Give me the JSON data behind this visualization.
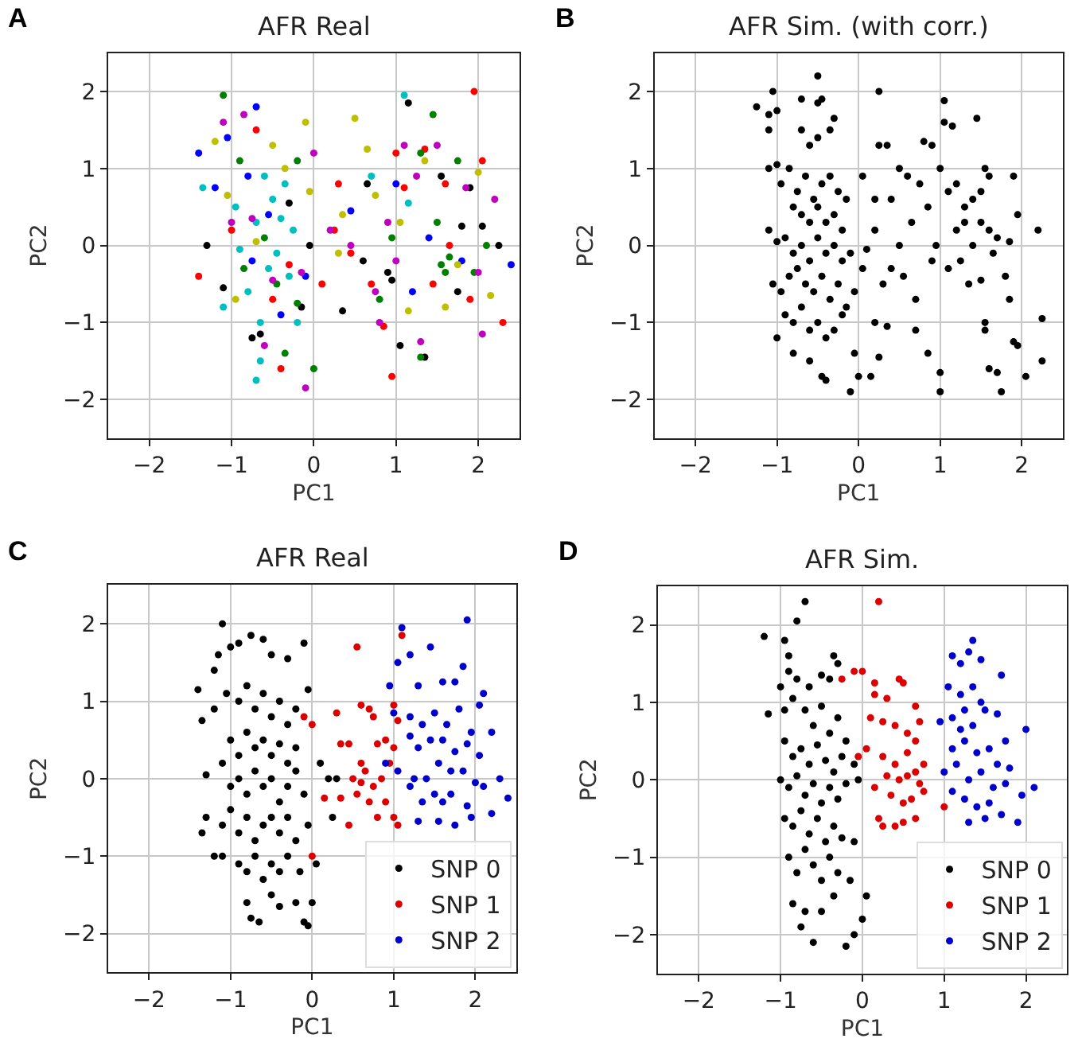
{
  "chart_data": [
    {
      "type": "scatter",
      "title": "AFR Real",
      "xlabel": "PC1",
      "ylabel": "PC2",
      "annotations": [
        "A"
      ],
      "xlim": [
        -2.5,
        2.5
      ],
      "ylim": [
        -2.5,
        2.5
      ],
      "xticks": [
        -2,
        -1,
        0,
        1,
        2
      ],
      "yticks": [
        -2,
        -1,
        0,
        1,
        2
      ],
      "grid": true,
      "marker": "circle",
      "legend": false,
      "series": [
        {
          "color": "#000000",
          "x": [
            -1.3,
            -1.1,
            -0.75,
            -0.65,
            -0.3,
            -0.15,
            -0.05,
            0.35,
            0.6,
            0.65,
            0.9,
            0.95,
            1.05,
            1.15,
            1.35,
            1.55,
            1.8,
            1.9,
            2.05,
            2.25,
            1.75
          ],
          "values": [
            0.0,
            -0.55,
            -1.2,
            -1.15,
            0.55,
            -0.8,
            0.0,
            -0.85,
            -0.2,
            0.8,
            -0.35,
            -0.45,
            -1.3,
            1.85,
            -1.45,
            0.9,
            0.25,
            0.75,
            0.25,
            0.0,
            -0.6
          ]
        },
        {
          "color": "#ff0000",
          "x": [
            -1.4,
            -1.0,
            -0.7,
            -0.5,
            -0.4,
            -0.3,
            0.1,
            0.25,
            0.3,
            0.45,
            0.7,
            0.85,
            0.95,
            1.0,
            1.1,
            1.35,
            1.45,
            1.6,
            1.65,
            1.95,
            2.05,
            2.3,
            1.9
          ],
          "values": [
            -0.4,
            0.2,
            1.5,
            -0.7,
            -1.6,
            -0.25,
            -0.5,
            0.2,
            0.8,
            -0.1,
            -0.5,
            -1.05,
            -1.7,
            1.2,
            0.75,
            1.25,
            -0.5,
            0.8,
            0.0,
            2.0,
            1.1,
            -1.0,
            -0.7
          ]
        },
        {
          "color": "#008000",
          "x": [
            -1.1,
            -0.9,
            -0.85,
            -0.6,
            -0.45,
            -0.35,
            -0.2,
            -0.2,
            0.0,
            0.8,
            0.95,
            1.3,
            1.45,
            1.5,
            1.55,
            1.6,
            1.75,
            1.95,
            2.1,
            1.3,
            1.65
          ],
          "values": [
            1.95,
            1.1,
            -0.3,
            0.1,
            -0.5,
            -1.4,
            1.1,
            -0.75,
            -1.6,
            -0.7,
            0.1,
            1.2,
            1.7,
            0.3,
            -0.25,
            -0.35,
            1.1,
            -0.35,
            0.0,
            -1.45,
            -0.15
          ]
        },
        {
          "color": "#0000ff",
          "x": [
            -1.4,
            -1.2,
            -1.05,
            -0.8,
            -0.7,
            -0.75,
            -0.55,
            -0.4,
            -0.1,
            0.45,
            1.0,
            1.4,
            1.8,
            2.4,
            1.2
          ],
          "values": [
            1.2,
            0.75,
            1.4,
            0.9,
            1.8,
            -0.2,
            0.4,
            -0.9,
            -0.4,
            0.45,
            0.8,
            0.1,
            -0.2,
            -0.25,
            -0.6
          ]
        },
        {
          "color": "#00bfbf",
          "x": [
            -1.35,
            -1.1,
            -0.95,
            -0.9,
            -0.8,
            -0.7,
            -0.65,
            -0.6,
            -0.55,
            -0.5,
            -0.45,
            -0.35,
            -0.3,
            -0.25,
            -0.2,
            -0.65,
            -0.7,
            0.7,
            1.1,
            1.15,
            -0.4
          ],
          "values": [
            0.75,
            -0.8,
            0.5,
            -0.05,
            -0.6,
            0.3,
            -1.0,
            0.9,
            -0.3,
            0.6,
            -0.1,
            0.8,
            -0.4,
            0.2,
            -1.0,
            -1.5,
            -1.75,
            0.9,
            1.95,
            0.55,
            0.35
          ]
        },
        {
          "color": "#bf00bf",
          "x": [
            -1.1,
            -0.85,
            -1.0,
            -0.75,
            -0.6,
            -0.5,
            -0.15,
            -0.1,
            0.0,
            0.2,
            0.45,
            0.75,
            0.8,
            1.0,
            1.1,
            1.25,
            1.3,
            1.5,
            1.85,
            2.0,
            2.2,
            2.05,
            0.9
          ],
          "values": [
            1.6,
            1.7,
            0.3,
            0.35,
            -1.3,
            -0.45,
            -0.35,
            -1.85,
            1.2,
            0.2,
            0.0,
            -0.6,
            -1.0,
            -0.2,
            1.3,
            0.9,
            -1.25,
            1.3,
            0.75,
            -0.35,
            0.6,
            -1.15,
            0.3
          ]
        },
        {
          "color": "#bfbf00",
          "x": [
            -1.2,
            -1.05,
            -0.95,
            -0.7,
            -0.5,
            -0.35,
            -0.1,
            -0.05,
            0.35,
            0.5,
            0.65,
            0.75,
            1.05,
            1.15,
            1.35,
            1.6,
            1.75,
            2.0,
            2.15,
            0.3
          ],
          "values": [
            1.35,
            0.65,
            -0.7,
            0.05,
            1.3,
            1.0,
            1.6,
            0.7,
            0.4,
            1.65,
            1.25,
            0.65,
            0.3,
            -0.85,
            1.1,
            -0.8,
            -0.25,
            0.95,
            -0.65,
            -0.1
          ]
        }
      ]
    },
    {
      "type": "scatter",
      "title": "AFR Sim. (with corr.)",
      "xlabel": "PC1",
      "ylabel": "PC2",
      "annotations": [
        "B"
      ],
      "xlim": [
        -2.5,
        2.5
      ],
      "ylim": [
        -2.5,
        2.5
      ],
      "xticks": [
        -2,
        -1,
        0,
        1,
        2
      ],
      "yticks": [
        -2,
        -1,
        0,
        1,
        2
      ],
      "grid": true,
      "marker": "circle",
      "legend": false,
      "series": [
        {
          "color": "#000000",
          "x": [
            -1.25,
            -1.05,
            -1.1,
            -1.1,
            -1.0,
            -0.7,
            -0.5,
            -0.5,
            -0.45,
            -0.7,
            -0.6,
            -0.5,
            -0.3,
            -0.35,
            -1.1,
            -1.0,
            -0.95,
            -0.85,
            -0.75,
            -0.65,
            -0.55,
            -0.45,
            -0.35,
            -0.25,
            -0.15,
            -0.8,
            -0.7,
            -0.6,
            -0.5,
            -0.4,
            -0.3,
            -0.2,
            -1.1,
            -1.0,
            -0.9,
            -0.8,
            -0.7,
            -0.6,
            -0.5,
            -0.4,
            -0.3,
            -0.2,
            -0.1,
            -1.05,
            -0.95,
            -0.85,
            -0.75,
            -0.65,
            -0.55,
            -0.45,
            -0.35,
            -0.25,
            -0.15,
            -0.05,
            -0.9,
            -0.8,
            -0.7,
            -0.6,
            -0.5,
            -0.4,
            -0.3,
            -0.2,
            -1.0,
            -0.8,
            -0.6,
            -0.45,
            -0.4,
            -0.1,
            -0.05,
            0.0,
            0.15,
            0.25,
            0.2,
            0.35,
            0.05,
            0.1,
            0.2,
            0.3,
            0.4,
            0.5,
            0.55,
            0.65,
            0.7,
            0.75,
            0.85,
            0.9,
            0.95,
            0.05,
            0.25,
            0.25,
            0.35,
            0.2,
            0.4,
            0.5,
            0.6,
            0.8,
            0.9,
            0.85,
            0.7,
            1.0,
            1.0,
            1.05,
            1.05,
            1.15,
            1.45,
            1.0,
            1.1,
            1.2,
            1.3,
            1.4,
            1.5,
            1.6,
            1.55,
            1.9,
            1.2,
            1.3,
            1.4,
            1.5,
            1.6,
            1.7,
            1.85,
            1.95,
            2.2,
            1.1,
            1.25,
            1.35,
            1.5,
            1.65,
            1.8,
            1.85,
            1.55,
            1.55,
            1.6,
            1.7,
            1.75,
            1.9,
            1.95,
            2.05,
            2.25,
            2.25
          ],
          "values": [
            1.8,
            2.0,
            1.7,
            1.5,
            1.75,
            1.9,
            2.2,
            1.85,
            1.9,
            1.5,
            1.3,
            1.4,
            1.65,
            1.5,
            1.0,
            1.05,
            0.8,
            1.0,
            0.7,
            0.9,
            0.6,
            0.8,
            0.9,
            0.7,
            0.6,
            0.5,
            0.4,
            0.3,
            0.5,
            0.3,
            0.4,
            0.2,
            0.2,
            0.05,
            0.1,
            -0.1,
            0.0,
            -0.2,
            0.1,
            -0.1,
            0.0,
            -0.2,
            -0.1,
            -0.5,
            -0.6,
            -0.4,
            -0.3,
            -0.5,
            -0.6,
            -0.4,
            -0.7,
            -0.5,
            -0.8,
            -0.6,
            -0.9,
            -1.0,
            -0.8,
            -1.1,
            -1.0,
            -1.2,
            -1.1,
            -0.9,
            -1.2,
            -1.4,
            -1.5,
            -1.7,
            -1.75,
            -1.9,
            -1.4,
            -1.7,
            -1.7,
            -1.45,
            -1.0,
            -1.05,
            -0.3,
            -0.05,
            0.2,
            -0.5,
            -0.3,
            0.0,
            -0.4,
            0.3,
            -0.7,
            0.8,
            0.5,
            -0.2,
            0.0,
            0.9,
            1.3,
            2.0,
            1.3,
            0.6,
            0.6,
            1.0,
            0.9,
            1.35,
            1.3,
            -1.4,
            -1.1,
            -1.65,
            -1.9,
            1.88,
            1.6,
            1.55,
            1.65,
            1.0,
            0.7,
            0.8,
            0.5,
            0.6,
            0.7,
            0.9,
            1.0,
            0.9,
            0.2,
            0.3,
            0.0,
            0.3,
            0.2,
            0.1,
            0.05,
            0.4,
            0.2,
            -0.3,
            -0.2,
            -0.5,
            -0.45,
            -0.1,
            -0.4,
            -0.7,
            -1.0,
            -1.1,
            -1.6,
            -1.65,
            -1.9,
            -1.25,
            -1.3,
            -1.7,
            -0.95,
            -1.5
          ]
        }
      ]
    },
    {
      "type": "scatter",
      "title": "AFR Real",
      "xlabel": "PC1",
      "ylabel": "PC2",
      "annotations": [
        "C"
      ],
      "xlim": [
        -2.5,
        2.5
      ],
      "ylim": [
        -2.5,
        2.5
      ],
      "xticks": [
        -2,
        -1,
        0,
        1,
        2
      ],
      "yticks": [
        -2,
        -1,
        0,
        1,
        2
      ],
      "grid": true,
      "marker": "circle",
      "legend": "bottom right",
      "series": [
        {
          "name": "SNP 0",
          "color": "#000000",
          "x": [
            -1.1,
            -1.4,
            -1.2,
            -1.15,
            -1.0,
            -0.9,
            -0.75,
            -0.6,
            -0.5,
            -0.3,
            -0.1,
            -1.35,
            -1.2,
            -1.05,
            -0.9,
            -0.8,
            -0.7,
            -0.6,
            -0.5,
            -0.4,
            -0.3,
            -0.2,
            -0.05,
            -1.0,
            -0.9,
            -0.8,
            -0.7,
            -0.6,
            -0.5,
            -0.4,
            -0.3,
            -0.2,
            -1.3,
            -1.1,
            -1.0,
            -0.9,
            -0.8,
            -0.7,
            -0.6,
            -0.5,
            -0.4,
            -0.3,
            -0.2,
            -0.1,
            0.1,
            0.2,
            0.3,
            0.25,
            -1.3,
            -1.1,
            -1.0,
            -0.9,
            -0.8,
            -0.7,
            -0.6,
            -0.5,
            -0.4,
            -0.3,
            -0.2,
            -0.05,
            -1.35,
            -1.2,
            -1.1,
            -0.9,
            -0.8,
            -0.7,
            -0.6,
            -0.5,
            -0.4,
            -0.3,
            -0.15,
            0.05,
            -0.8,
            -0.75,
            -0.65,
            -0.5,
            -0.4,
            -0.2,
            -0.1,
            -0.05,
            0.0
          ],
          "values": [
            2.0,
            1.15,
            1.4,
            1.6,
            1.7,
            1.75,
            1.85,
            1.8,
            1.6,
            1.55,
            1.75,
            0.75,
            0.9,
            1.1,
            1.0,
            1.2,
            0.9,
            1.1,
            0.8,
            1.0,
            0.7,
            0.9,
            1.15,
            0.5,
            0.3,
            0.6,
            0.4,
            0.5,
            0.3,
            0.45,
            0.2,
            0.4,
            0.05,
            0.2,
            -0.1,
            0.0,
            -0.2,
            0.1,
            -0.1,
            0.0,
            -0.3,
            -0.1,
            0.1,
            -0.2,
            0.2,
            0.0,
            0.0,
            -0.5,
            -0.5,
            -0.6,
            -0.4,
            -0.7,
            -0.5,
            -0.8,
            -0.6,
            -0.5,
            -0.7,
            -0.5,
            -0.8,
            -0.6,
            -0.7,
            -1.0,
            -1.0,
            -1.1,
            -1.2,
            -1.0,
            -1.3,
            -1.1,
            -1.2,
            -1.0,
            -1.2,
            -1.1,
            -1.6,
            -1.8,
            -1.85,
            -1.5,
            -1.65,
            -1.6,
            -1.85,
            -1.9,
            -1.6
          ]
        },
        {
          "name": "SNP 1",
          "color": "#dd0000",
          "x": [
            0.55,
            1.1,
            -0.1,
            0.0,
            0.3,
            0.6,
            0.7,
            0.75,
            1.0,
            1.05,
            0.35,
            0.45,
            0.6,
            0.8,
            0.9,
            0.5,
            0.65,
            0.75,
            0.85,
            0.15,
            0.35,
            0.55,
            0.7,
            0.9,
            1.0,
            0.8,
            0.45,
            1.05,
            0.95,
            0.6,
            0.0,
            1.0
          ],
          "values": [
            1.7,
            1.85,
            0.8,
            0.7,
            0.85,
            0.95,
            0.9,
            0.8,
            0.95,
            0.75,
            0.45,
            0.45,
            0.2,
            0.45,
            0.5,
            0.0,
            0.1,
            -0.1,
            0.0,
            -0.25,
            -0.25,
            -0.2,
            -0.3,
            -0.3,
            -0.5,
            -0.5,
            -0.6,
            -0.6,
            0.2,
            -0.05,
            -1.0,
            0.4
          ]
        },
        {
          "name": "SNP 2",
          "color": "#0000cc",
          "x": [
            1.1,
            1.2,
            1.45,
            1.9,
            1.85,
            1.05,
            0.95,
            1.3,
            1.6,
            1.75,
            2.1,
            2.05,
            1.0,
            1.2,
            1.35,
            1.5,
            1.65,
            1.8,
            1.95,
            2.2,
            1.2,
            1.3,
            1.45,
            1.6,
            1.75,
            1.9,
            2.05,
            0.9,
            1.05,
            1.25,
            1.4,
            1.55,
            1.7,
            1.85,
            2.0,
            2.3,
            2.4,
            1.2,
            1.35,
            1.5,
            1.6,
            1.7,
            1.9,
            2.1,
            1.3,
            1.55,
            1.75,
            1.95,
            2.2
          ],
          "values": [
            1.95,
            1.6,
            1.7,
            2.05,
            1.45,
            1.5,
            1.2,
            1.2,
            1.25,
            1.25,
            1.1,
            0.95,
            0.85,
            0.8,
            0.7,
            0.85,
            0.7,
            0.9,
            0.6,
            0.6,
            0.55,
            0.4,
            0.5,
            0.5,
            0.35,
            0.45,
            0.3,
            0.2,
            0.1,
            0.0,
            0.0,
            0.2,
            0.1,
            0.1,
            -0.05,
            0.0,
            -0.25,
            -0.1,
            -0.3,
            -0.2,
            -0.3,
            -0.2,
            -0.35,
            -0.1,
            -0.55,
            -0.55,
            -0.6,
            -0.5,
            -0.45
          ]
        }
      ]
    },
    {
      "type": "scatter",
      "title": "AFR Sim.",
      "xlabel": "PC1",
      "ylabel": "PC2",
      "annotations": [
        "D"
      ],
      "xlim": [
        -2.5,
        2.5
      ],
      "ylim": [
        -2.5,
        2.5
      ],
      "xticks": [
        -2,
        -1,
        0,
        1,
        2
      ],
      "yticks": [
        -2,
        -1,
        0,
        1,
        2
      ],
      "grid": true,
      "marker": "circle",
      "legend": "bottom right",
      "series": [
        {
          "name": "SNP 0",
          "color": "#000000",
          "x": [
            -1.2,
            -0.95,
            -0.9,
            -0.8,
            -0.7,
            -0.35,
            -1.15,
            -1.0,
            -0.9,
            -0.8,
            -0.65,
            -0.5,
            -0.4,
            -0.3,
            -0.95,
            -0.85,
            -0.7,
            -0.6,
            -0.5,
            -0.4,
            -0.3,
            -0.2,
            -0.95,
            -0.85,
            -0.75,
            -0.65,
            -0.55,
            -0.45,
            -0.35,
            -0.25,
            -0.1,
            -1.0,
            -0.9,
            -0.8,
            -0.7,
            -0.6,
            -0.5,
            -0.4,
            -0.3,
            -0.2,
            -0.05,
            -0.95,
            -0.85,
            -0.75,
            -0.65,
            -0.55,
            -0.45,
            -0.35,
            -0.25,
            -0.1,
            -0.9,
            -0.8,
            -0.7,
            -0.6,
            -0.5,
            -0.4,
            -0.3,
            -0.15,
            -0.85,
            -0.75,
            -0.6,
            -0.5,
            -0.35,
            -0.2,
            -0.1,
            0.05,
            0.0,
            -0.7
          ],
          "values": [
            1.85,
            1.8,
            1.6,
            2.05,
            2.3,
            1.6,
            0.85,
            1.2,
            1.4,
            1.3,
            1.2,
            1.35,
            1.3,
            1.5,
            0.9,
            1.05,
            0.9,
            0.7,
            0.95,
            0.6,
            0.8,
            0.5,
            0.5,
            0.3,
            0.4,
            0.2,
            0.45,
            0.25,
            0.1,
            0.3,
            0.2,
            0.0,
            -0.1,
            0.05,
            -0.2,
            -0.05,
            -0.3,
            -0.1,
            -0.25,
            -0.05,
            0.0,
            -0.5,
            -0.6,
            -0.4,
            -0.7,
            -0.5,
            -0.8,
            -0.6,
            -0.75,
            -0.8,
            -1.0,
            -1.2,
            -0.9,
            -1.1,
            -1.3,
            -1.0,
            -1.2,
            -1.3,
            -1.6,
            -1.9,
            -2.1,
            -1.7,
            -1.5,
            -2.15,
            -2.0,
            -1.5,
            -1.8,
            -1.7
          ]
        },
        {
          "name": "SNP 1",
          "color": "#dd0000",
          "x": [
            0.2,
            -0.25,
            -0.1,
            0.0,
            0.15,
            0.15,
            0.3,
            0.45,
            0.5,
            0.65,
            0.7,
            0.1,
            0.25,
            0.4,
            0.55,
            0.05,
            0.25,
            0.4,
            0.55,
            0.65,
            0.75,
            0.3,
            0.45,
            0.55,
            0.65,
            0.7,
            0.15,
            0.35,
            0.5,
            0.6,
            0.75,
            0.2,
            0.4,
            0.5,
            0.65,
            1.0,
            0.25,
            -0.05
          ],
          "values": [
            2.3,
            1.3,
            1.4,
            1.4,
            1.25,
            1.1,
            1.05,
            1.3,
            1.25,
            0.95,
            0.75,
            0.8,
            0.75,
            0.7,
            0.6,
            0.4,
            0.3,
            0.2,
            0.35,
            0.5,
            0.2,
            0.05,
            0.0,
            0.05,
            0.1,
            -0.05,
            -0.1,
            -0.2,
            -0.3,
            -0.25,
            -0.15,
            -0.5,
            -0.6,
            -0.55,
            -0.5,
            -0.35,
            -0.6,
            0.3
          ]
        },
        {
          "name": "SNP 2",
          "color": "#0000cc",
          "x": [
            1.1,
            1.2,
            1.3,
            1.35,
            1.45,
            1.7,
            1.05,
            1.2,
            1.35,
            1.45,
            0.95,
            1.1,
            1.2,
            1.25,
            1.35,
            1.5,
            1.65,
            1.75,
            2.0,
            1.1,
            1.25,
            1.4,
            1.55,
            1.65,
            1.8,
            1.0,
            1.15,
            1.3,
            1.45,
            1.6,
            1.75,
            1.95,
            2.1,
            1.1,
            1.25,
            1.4,
            1.55,
            1.7,
            1.9,
            1.3,
            1.5
          ],
          "values": [
            1.6,
            1.5,
            1.65,
            1.8,
            1.55,
            1.35,
            1.2,
            1.1,
            1.2,
            1.0,
            0.75,
            0.8,
            0.65,
            0.9,
            0.7,
            0.9,
            0.85,
            0.5,
            0.65,
            0.4,
            0.5,
            0.35,
            0.4,
            0.2,
            0.15,
            0.1,
            0.2,
            0.0,
            0.1,
            -0.1,
            -0.05,
            -0.2,
            -0.1,
            -0.15,
            -0.25,
            -0.35,
            -0.3,
            -0.45,
            -0.55,
            -0.55,
            -0.5
          ]
        }
      ]
    }
  ]
}
